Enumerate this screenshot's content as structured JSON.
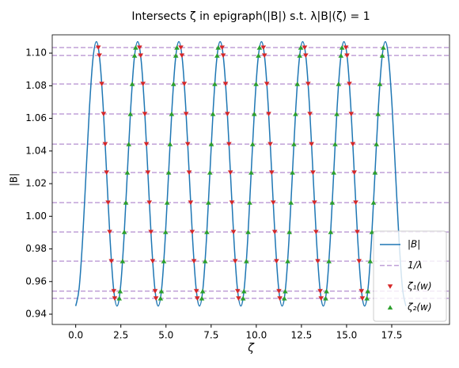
{
  "chart_data": {
    "type": "line",
    "title": "Intersects ζ in epigraph(|B|) s.t. λ|B|(ζ) = 1",
    "x_label": "ζ",
    "y_label": "|B|",
    "xlim": [
      -1.3,
      20.7
    ],
    "ylim": [
      0.9337,
      1.1112
    ],
    "xticks": [
      {
        "value": 0,
        "label": "0.0"
      },
      2.5,
      {
        "value": 5,
        "label": "5.0"
      },
      7.5,
      {
        "value": 10,
        "label": "10.0"
      },
      12.5,
      {
        "value": 15,
        "label": "15.0"
      },
      17.5
    ],
    "yticks": [
      0.94,
      0.96,
      0.98,
      {
        "value": 1,
        "label": "1.00"
      },
      1.02,
      1.04,
      1.06,
      1.08,
      {
        "value": 1.1,
        "label": "1.10"
      }
    ],
    "legend": "lower right",
    "series": [
      {
        "name": "|B|",
        "kind": "line",
        "color": "#1f77b4",
        "x": [
          0,
          0.19,
          0.381,
          0.571,
          0.762,
          0.952,
          1.143,
          1.333,
          1.524,
          1.714,
          1.905,
          2.095,
          2.286,
          2.476,
          2.667,
          2.857,
          3.048,
          3.238,
          3.429,
          3.619,
          3.81,
          4.0,
          4.19,
          4.381,
          4.571,
          4.762,
          4.952,
          5.143,
          5.333,
          5.524,
          5.714,
          5.905,
          6.095,
          6.286,
          6.476,
          6.667,
          6.857,
          7.048,
          7.238,
          7.429,
          7.619,
          7.81,
          8.0,
          8.19,
          8.381,
          8.571,
          8.762,
          8.952,
          9.143,
          9.333,
          9.524,
          9.714,
          9.905,
          10.095,
          10.286,
          10.476,
          10.667,
          10.857,
          11.048,
          11.238,
          11.429,
          11.619,
          11.81,
          12.0,
          12.19,
          12.381,
          12.571,
          12.762,
          12.952,
          13.143,
          13.333,
          13.524,
          13.714,
          13.905,
          14.095,
          14.286,
          14.476,
          14.667,
          14.857,
          15.048,
          15.238,
          15.429,
          15.619,
          15.81,
          16.0,
          16.19,
          16.381,
          16.571,
          16.762,
          16.952,
          17.143,
          17.333,
          17.524,
          17.714,
          17.905,
          18.095,
          18.286
        ],
        "values": [
          0.945,
          0.9559,
          0.9855,
          1.026,
          1.0665,
          1.0961,
          1.107,
          1.0961,
          1.0665,
          1.026,
          0.9855,
          0.9559,
          0.945,
          0.9559,
          0.9855,
          1.026,
          1.0665,
          1.0961,
          1.107,
          1.0961,
          1.0665,
          1.026,
          0.9855,
          0.9559,
          0.945,
          0.9559,
          0.9855,
          1.026,
          1.0665,
          1.0961,
          1.107,
          1.0961,
          1.0665,
          1.026,
          0.9855,
          0.9559,
          0.945,
          0.9559,
          0.9855,
          1.026,
          1.0665,
          1.0961,
          1.107,
          1.0961,
          1.0665,
          1.026,
          0.9855,
          0.9559,
          0.945,
          0.9559,
          0.9855,
          1.026,
          1.0665,
          1.0961,
          1.107,
          1.0961,
          1.0665,
          1.026,
          0.9855,
          0.9559,
          0.945,
          0.9559,
          0.9855,
          1.026,
          1.0665,
          1.0961,
          1.107,
          1.0961,
          1.0665,
          1.026,
          0.9855,
          0.9559,
          0.945,
          0.9559,
          0.9855,
          1.026,
          1.0665,
          1.0961,
          1.107,
          1.0961,
          1.0665,
          1.026,
          0.9855,
          0.9559,
          0.945,
          0.9559,
          0.9855,
          1.026,
          1.0665,
          1.0961,
          1.107,
          1.0961,
          1.0665,
          1.026,
          0.9855,
          0.9559,
          0.945
        ]
      },
      {
        "name": "1/λ",
        "kind": "hline",
        "color": "#c0a0d8",
        "values": [
          1.1034,
          1.0985,
          1.0811,
          1.0627,
          1.0442,
          1.0268,
          1.0084,
          0.9904,
          0.9725,
          0.9541,
          0.9497
        ]
      },
      {
        "name": "ζ₁(w)",
        "kind": "scatter",
        "marker": "v",
        "color": "#d62728",
        "x": [
          1.252,
          1.311,
          1.442,
          1.543,
          1.632,
          1.711,
          1.794,
          1.88,
          1.977,
          2.112,
          2.16,
          3.537,
          3.596,
          3.727,
          3.828,
          3.917,
          3.996,
          4.079,
          4.165,
          4.262,
          4.397,
          4.445,
          5.823,
          5.882,
          6.013,
          6.114,
          6.203,
          6.282,
          6.365,
          6.451,
          6.548,
          6.683,
          6.731,
          8.109,
          8.168,
          8.299,
          8.4,
          8.489,
          8.568,
          8.651,
          8.737,
          8.834,
          8.969,
          9.017,
          10.395,
          10.454,
          10.585,
          10.686,
          10.775,
          10.854,
          10.937,
          11.023,
          11.12,
          11.255,
          11.303,
          12.68,
          12.739,
          12.87,
          12.971,
          13.06,
          13.139,
          13.222,
          13.308,
          13.405,
          13.54,
          13.588,
          14.966,
          15.025,
          15.156,
          15.257,
          15.346,
          15.425,
          15.508,
          15.594,
          15.691,
          15.826,
          15.874
        ],
        "values": [
          1.1034,
          1.0985,
          1.0811,
          1.0627,
          1.0442,
          1.0268,
          1.0084,
          0.9904,
          0.9725,
          0.9541,
          0.9497,
          1.1034,
          1.0985,
          1.0811,
          1.0627,
          1.0442,
          1.0268,
          1.0084,
          0.9904,
          0.9725,
          0.9541,
          0.9497,
          1.1034,
          1.0985,
          1.0811,
          1.0627,
          1.0442,
          1.0268,
          1.0084,
          0.9904,
          0.9725,
          0.9541,
          0.9497,
          1.1034,
          1.0985,
          1.0811,
          1.0627,
          1.0442,
          1.0268,
          1.0084,
          0.9904,
          0.9725,
          0.9541,
          0.9497,
          1.1034,
          1.0985,
          1.0811,
          1.0627,
          1.0442,
          1.0268,
          1.0084,
          0.9904,
          0.9725,
          0.9541,
          0.9497,
          1.1034,
          1.0985,
          1.0811,
          1.0627,
          1.0442,
          1.0268,
          1.0084,
          0.9904,
          0.9725,
          0.9541,
          0.9497,
          1.1034,
          1.0985,
          1.0811,
          1.0627,
          1.0442,
          1.0268,
          1.0084,
          0.9904,
          0.9725,
          0.9541,
          0.9497
        ]
      },
      {
        "name": "ζ₂(w)",
        "kind": "scatter",
        "marker": "^",
        "color": "#2ca02c",
        "x": [
          3.32,
          3.261,
          3.13,
          3.029,
          2.94,
          2.861,
          2.778,
          2.692,
          2.595,
          2.46,
          2.412,
          5.605,
          5.546,
          5.415,
          5.314,
          5.225,
          5.146,
          5.063,
          4.977,
          4.88,
          4.745,
          4.697,
          7.891,
          7.832,
          7.701,
          7.6,
          7.511,
          7.432,
          7.349,
          7.263,
          7.166,
          7.031,
          6.983,
          10.177,
          10.118,
          9.987,
          9.886,
          9.797,
          9.718,
          9.635,
          9.549,
          9.452,
          9.317,
          9.269,
          12.463,
          12.404,
          12.273,
          12.172,
          12.083,
          12.004,
          11.921,
          11.835,
          11.738,
          11.603,
          11.555,
          14.748,
          14.689,
          14.558,
          14.457,
          14.368,
          14.289,
          14.206,
          14.12,
          14.023,
          13.888,
          13.84,
          17.034,
          16.975,
          16.844,
          16.743,
          16.654,
          16.575,
          16.492,
          16.406,
          16.309,
          16.174,
          16.126
        ],
        "values": [
          1.1034,
          1.0985,
          1.0811,
          1.0627,
          1.0442,
          1.0268,
          1.0084,
          0.9904,
          0.9725,
          0.9541,
          0.9497,
          1.1034,
          1.0985,
          1.0811,
          1.0627,
          1.0442,
          1.0268,
          1.0084,
          0.9904,
          0.9725,
          0.9541,
          0.9497,
          1.1034,
          1.0985,
          1.0811,
          1.0627,
          1.0442,
          1.0268,
          1.0084,
          0.9904,
          0.9725,
          0.9541,
          0.9497,
          1.1034,
          1.0985,
          1.0811,
          1.0627,
          1.0442,
          1.0268,
          1.0084,
          0.9904,
          0.9725,
          0.9541,
          0.9497,
          1.1034,
          1.0985,
          1.0811,
          1.0627,
          1.0442,
          1.0268,
          1.0084,
          0.9904,
          0.9725,
          0.9541,
          0.9497,
          1.1034,
          1.0985,
          1.0811,
          1.0627,
          1.0442,
          1.0268,
          1.0084,
          0.9904,
          0.9725,
          0.9541,
          0.9497,
          1.1034,
          1.0985,
          1.0811,
          1.0627,
          1.0442,
          1.0268,
          1.0084,
          0.9904,
          0.9725,
          0.9541,
          0.9497
        ]
      }
    ]
  }
}
